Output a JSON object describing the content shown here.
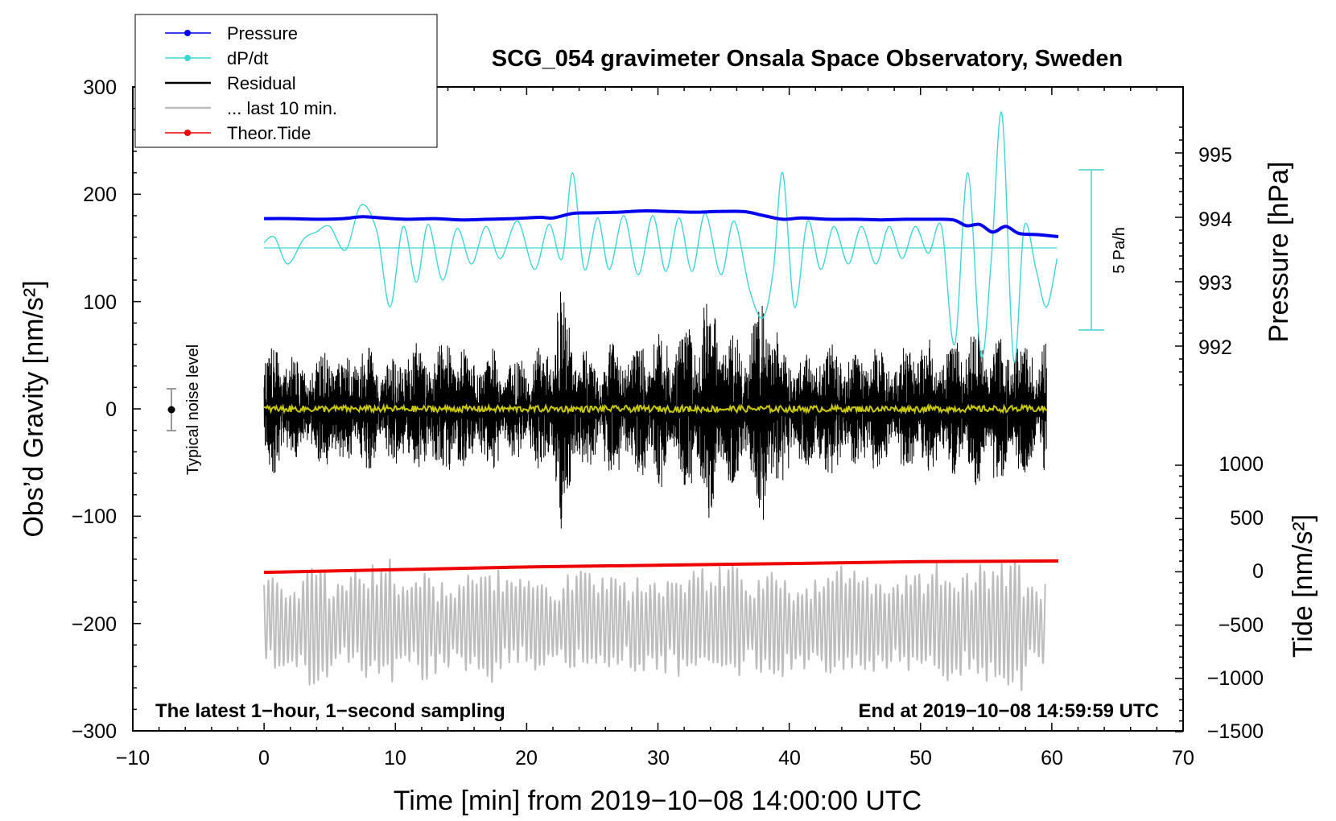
{
  "colors": {
    "pressure": "#0000ee",
    "dpdt": "#3fd6d6",
    "residual": "#000000",
    "last10": "#bdbdbd",
    "tide": "#ee0000",
    "smooth": "#c8c800"
  },
  "chart_data": {
    "type": "line",
    "title": "SCG_054 gravimeter Onsala Space Observatory, Sweden",
    "xlabel": "Time [min] from 2019−10−08 14:00:00 UTC",
    "ylabel_left": "Obs’d Gravity [nm/s²]",
    "ylabel_right_top": "Pressure [hPa]",
    "ylabel_right_bottom": "Tide [nm/s²]",
    "note_left": "The latest 1−hour, 1−second sampling",
    "note_right": "End at 2019−10−08 14:59:59 UTC",
    "noise_label": "Typical noise level",
    "scale_bar_label": "5 Pa/h",
    "xlim": [
      -10,
      70
    ],
    "ylim": [
      -300,
      300
    ],
    "x_ticks": [
      "−10",
      "0",
      "10",
      "20",
      "30",
      "40",
      "50",
      "60",
      "70"
    ],
    "y_ticks": [
      "300",
      "200",
      "100",
      "0",
      "−100",
      "−200",
      "−300"
    ],
    "pressure_ticks": [
      "995",
      "994",
      "993",
      "992"
    ],
    "tide_ticks": [
      "1000",
      "500",
      "0",
      "−500",
      "−1000",
      "−1500"
    ],
    "legend": [
      "Pressure",
      "dP/dt",
      "Residual",
      "... last 10 min.",
      "Theor.Tide"
    ],
    "series": [
      {
        "name": "Pressure",
        "unit": "hPa",
        "x": [
          0,
          2,
          4,
          6,
          7.5,
          9,
          11,
          13,
          15,
          17,
          19,
          21,
          22,
          23.5,
          25,
          27,
          29,
          31,
          33,
          34.5,
          36.5,
          38,
          39.5,
          41,
          43,
          45,
          47,
          49,
          51,
          52.5,
          53.5,
          54.5,
          55.5,
          56.5,
          57.5,
          59,
          60.5
        ],
        "values": [
          993.98,
          993.98,
          993.97,
          993.98,
          994.01,
          993.99,
          993.97,
          993.98,
          993.96,
          993.97,
          993.98,
          994.0,
          993.99,
          994.06,
          994.07,
          994.08,
          994.1,
          994.09,
          994.08,
          994.09,
          994.09,
          994.03,
          993.97,
          993.99,
          993.97,
          993.97,
          993.96,
          993.97,
          993.97,
          993.96,
          993.87,
          993.89,
          993.77,
          993.86,
          993.75,
          993.73,
          993.7
        ]
      },
      {
        "name": "dP/dt",
        "unit": "nm/s² (plot)",
        "x": [
          0,
          0.8,
          1.8,
          3,
          4,
          5,
          6.2,
          7.4,
          8.6,
          9.6,
          10.6,
          11.6,
          12.5,
          13.6,
          14.7,
          15.8,
          16.9,
          18,
          19.3,
          20.6,
          21.7,
          22.7,
          23.5,
          24.4,
          25.4,
          26.3,
          27.4,
          28.5,
          29.6,
          30.6,
          31.6,
          32.6,
          33.6,
          34.8,
          35.8,
          37,
          38,
          38.8,
          39.5,
          40.4,
          41.4,
          42.4,
          43.4,
          44.5,
          45.5,
          46.6,
          47.6,
          48.6,
          49.6,
          50.6,
          51.6,
          52.6,
          53.6,
          54.6,
          55.4,
          56.2,
          57.1,
          57.9,
          58.8,
          59.6,
          60.4
        ],
        "values": [
          155,
          160,
          135,
          158,
          165,
          170,
          148,
          190,
          165,
          95,
          170,
          118,
          172,
          120,
          168,
          135,
          170,
          140,
          175,
          130,
          172,
          140,
          220,
          130,
          178,
          130,
          180,
          125,
          180,
          128,
          178,
          128,
          182,
          125,
          175,
          110,
          85,
          130,
          220,
          95,
          175,
          130,
          170,
          135,
          170,
          135,
          170,
          140,
          170,
          145,
          170,
          60,
          220,
          50,
          140,
          275,
          45,
          170,
          130,
          95,
          140
        ]
      },
      {
        "name": "Residual",
        "unit": "nm/s²",
        "x": [
          0,
          1,
          2,
          3,
          4,
          5,
          6,
          7,
          8,
          9,
          10,
          11,
          12,
          13,
          14,
          15,
          16,
          17,
          18,
          19,
          20,
          21,
          22,
          22.8,
          23,
          24,
          25,
          26,
          27,
          28,
          29,
          30,
          31,
          32,
          33,
          34,
          35,
          36,
          37,
          38,
          39,
          40,
          41,
          42,
          43,
          44,
          45,
          46,
          47,
          48,
          49,
          50,
          51,
          52,
          53,
          54,
          55,
          56,
          57,
          58,
          59,
          59.6
        ],
        "envelope": [
          70,
          60,
          55,
          40,
          50,
          65,
          45,
          55,
          60,
          45,
          50,
          65,
          60,
          55,
          70,
          60,
          45,
          55,
          60,
          45,
          55,
          60,
          70,
          130,
          90,
          60,
          55,
          60,
          65,
          55,
          70,
          80,
          65,
          75,
          90,
          105,
          90,
          70,
          75,
          110,
          80,
          60,
          55,
          60,
          65,
          60,
          55,
          70,
          60,
          55,
          65,
          70,
          65,
          55,
          70,
          75,
          70,
          65,
          70,
          60,
          55,
          65
        ]
      },
      {
        "name": "... last 10 min.",
        "unit": "nm/s² (offset −200)",
        "x_range": [
          0,
          59.5
        ],
        "center": -200,
        "amplitude": [
          45,
          40,
          60,
          40,
          50,
          65,
          40,
          55,
          40,
          50,
          55,
          40,
          45,
          40,
          50,
          45,
          40,
          45,
          45,
          55,
          50,
          55,
          45,
          50,
          40,
          45,
          55,
          50,
          45,
          40,
          45,
          55,
          45,
          55,
          60,
          45
        ]
      },
      {
        "name": "Theor.Tide",
        "unit": "nm/s²",
        "x": [
          0,
          10,
          20,
          30,
          40,
          50,
          57,
          60.5
        ],
        "values": [
          -5,
          20,
          45,
          62,
          78,
          95,
          100,
          102
        ]
      }
    ]
  }
}
